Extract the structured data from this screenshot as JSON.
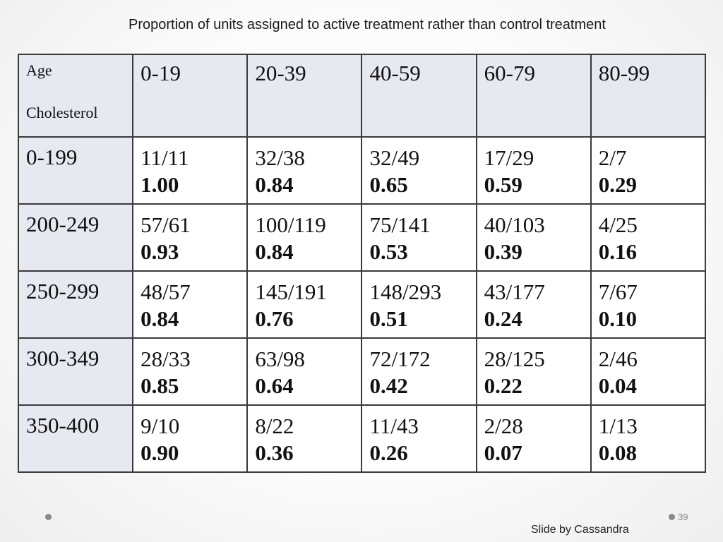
{
  "title": "Proportion of units assigned to active treatment rather than control treatment",
  "table": {
    "corner": {
      "top": "Age",
      "bottom": "Cholesterol"
    },
    "age_groups": [
      "0-19",
      "20-39",
      "40-59",
      "60-79",
      "80-99"
    ],
    "rows": [
      {
        "cholesterol": "0-199",
        "cells": [
          {
            "fraction": "11/11",
            "proportion": "1.00"
          },
          {
            "fraction": "32/38",
            "proportion": "0.84"
          },
          {
            "fraction": "32/49",
            "proportion": "0.65"
          },
          {
            "fraction": "17/29",
            "proportion": "0.59"
          },
          {
            "fraction": "2/7",
            "proportion": "0.29"
          }
        ]
      },
      {
        "cholesterol": "200-249",
        "cells": [
          {
            "fraction": "57/61",
            "proportion": "0.93"
          },
          {
            "fraction": "100/119",
            "proportion": "0.84"
          },
          {
            "fraction": "75/141",
            "proportion": "0.53"
          },
          {
            "fraction": "40/103",
            "proportion": "0.39"
          },
          {
            "fraction": "4/25",
            "proportion": "0.16"
          }
        ]
      },
      {
        "cholesterol": "250-299",
        "cells": [
          {
            "fraction": "48/57",
            "proportion": "0.84"
          },
          {
            "fraction": "145/191",
            "proportion": "0.76"
          },
          {
            "fraction": "148/293",
            "proportion": "0.51"
          },
          {
            "fraction": "43/177",
            "proportion": "0.24"
          },
          {
            "fraction": "7/67",
            "proportion": "0.10"
          }
        ]
      },
      {
        "cholesterol": "300-349",
        "cells": [
          {
            "fraction": "28/33",
            "proportion": "0.85"
          },
          {
            "fraction": "63/98",
            "proportion": "0.64"
          },
          {
            "fraction": "72/172",
            "proportion": "0.42"
          },
          {
            "fraction": "28/125",
            "proportion": "0.22"
          },
          {
            "fraction": "2/46",
            "proportion": "0.04"
          }
        ]
      },
      {
        "cholesterol": "350-400",
        "cells": [
          {
            "fraction": "9/10",
            "proportion": "0.90"
          },
          {
            "fraction": "8/22",
            "proportion": "0.36"
          },
          {
            "fraction": "11/43",
            "proportion": "0.26"
          },
          {
            "fraction": "2/28",
            "proportion": "0.07"
          },
          {
            "fraction": "1/13",
            "proportion": "0.08"
          }
        ]
      }
    ]
  },
  "footer": {
    "page_number": "39",
    "credit": "Slide by Cassandra"
  },
  "colors": {
    "header_fill": "#e6e9f0",
    "border": "#3a3a3a",
    "bullet": "#8a8a8a"
  }
}
